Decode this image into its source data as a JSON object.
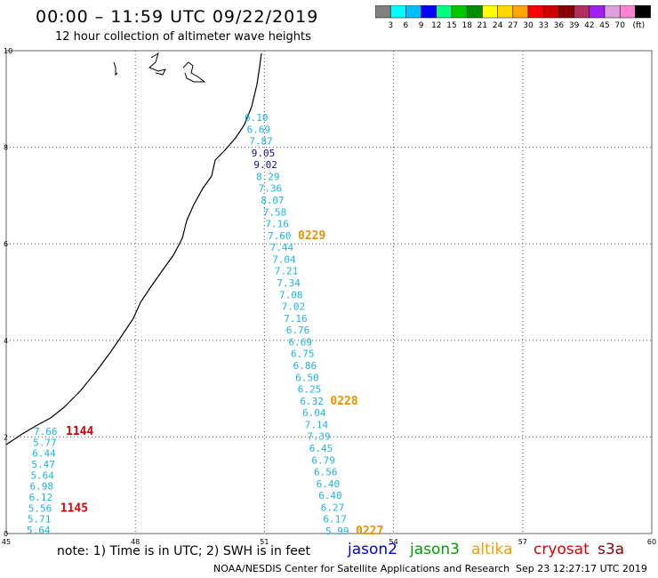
{
  "title": "00:00 – 11:59 UTC 09/22/2019",
  "subtitle": "12 hour collection of altimeter wave heights",
  "scale": {
    "unit": "(ft)",
    "colors": [
      "#808080",
      "#00ffff",
      "#00bfff",
      "#0000ff",
      "#00ff7f",
      "#00c800",
      "#008c00",
      "#ffff00",
      "#ffd700",
      "#ffa500",
      "#ff0000",
      "#cc0000",
      "#8b0000",
      "#b03060",
      "#a020f0",
      "#dda0dd",
      "#ff82d0",
      "#000000"
    ],
    "labels": [
      "3",
      "6",
      "9",
      "12",
      "15",
      "18",
      "21",
      "24",
      "27",
      "30",
      "33",
      "36",
      "39",
      "42",
      "45",
      "70"
    ]
  },
  "axes": {
    "x_ticks": [
      "45",
      "48",
      "51",
      "54",
      "57",
      "60"
    ],
    "y_ticks": [
      "0",
      "2",
      "4",
      "6",
      "8",
      "10"
    ]
  },
  "track_colors": {
    "altika": "#1ab4e6",
    "altika_high": "#1010a0",
    "cryosat": "#1ab4e6"
  },
  "track_a": {
    "values": [
      "6.10",
      "6.69",
      "7.87",
      "9.05",
      "9.02",
      "8.29",
      "7.36",
      "8.07",
      "7.58",
      "7.16",
      "7.60",
      "7.44",
      "7.04",
      "7.21",
      "7.34",
      "7.08",
      "7.02",
      "7.16",
      "6.76",
      "6.69",
      "6.75",
      "6.86",
      "6.50",
      "6.25",
      "6.32",
      "6.04",
      "7.14",
      "7.39",
      "6.45",
      "6.79",
      "6.56",
      "6.40",
      "6.40",
      "6.27",
      "6.17",
      "5.99"
    ],
    "high_values": [
      "9.05",
      "9.02"
    ],
    "time_labels": [
      {
        "text": "0229",
        "after_index": 10
      },
      {
        "text": "0228",
        "after_index": 24
      },
      {
        "text": "0227",
        "after_index": 35
      }
    ],
    "time_color": "#f09000"
  },
  "track_b": {
    "values": [
      "7.66",
      "5.77",
      "6.44",
      "5.47",
      "5.64",
      "6.98",
      "6.12",
      "5.56",
      "5.71",
      "5.64"
    ],
    "time_labels": [
      {
        "text": "1144",
        "after_index": 0
      },
      {
        "text": "1145",
        "after_index": 7
      }
    ],
    "time_color": "#e00000"
  },
  "notes": {
    "text": "note:  1) Time is in UTC;  2) SWH is in feet"
  },
  "missions": [
    {
      "name": "jason2",
      "color": "#0000e0"
    },
    {
      "name": "jason3",
      "color": "#00a000"
    },
    {
      "name": "altika",
      "color": "#f0a000"
    },
    {
      "name": "cryosat",
      "color": "#e00000"
    },
    {
      "name": "s3a",
      "color": "#8b0000"
    }
  ],
  "credit": "NOAA/NESDIS Center for Satellite Applications and Research",
  "stamp": "Sep 23 12:27:17 UTC 2019"
}
